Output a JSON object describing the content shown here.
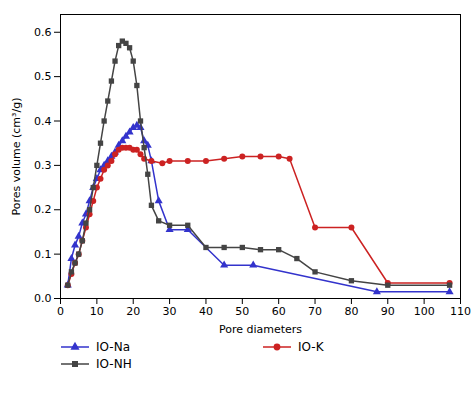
{
  "chart_data": {
    "type": "line",
    "xlabel": "Pore diameters",
    "ylabel": "Pores volume (cm³/g)",
    "xlim": [
      0,
      110
    ],
    "ylim": [
      0.0,
      0.64
    ],
    "xticks": [
      0,
      10,
      20,
      30,
      40,
      50,
      60,
      70,
      80,
      90,
      100,
      110
    ],
    "yticks": [
      {
        "value": 0.0,
        "label": "0.0"
      },
      0.1,
      0.2,
      0.3,
      0.4,
      0.5,
      0.6
    ],
    "grid": false,
    "legend": "bottom",
    "series": [
      {
        "name": "IO-Na",
        "color": "#3333cc",
        "marker": "triangle",
        "line_style": "solid",
        "x": [
          2,
          3,
          4,
          5,
          6,
          7,
          8,
          9,
          10,
          11,
          12,
          13,
          14,
          15,
          16,
          17,
          18,
          19,
          20,
          21,
          22,
          23,
          24,
          25,
          27,
          30,
          35,
          45,
          53,
          87,
          107
        ],
        "values": [
          0.03,
          0.09,
          0.12,
          0.14,
          0.17,
          0.19,
          0.22,
          0.25,
          0.27,
          0.29,
          0.3,
          0.31,
          0.32,
          0.33,
          0.345,
          0.355,
          0.365,
          0.375,
          0.385,
          0.39,
          0.385,
          0.355,
          0.345,
          0.31,
          0.22,
          0.155,
          0.155,
          0.075,
          0.075,
          0.015,
          0.015
        ]
      },
      {
        "name": "IO-K",
        "color": "#cc2222",
        "marker": "circle",
        "line_style": "solid",
        "x": [
          2,
          3,
          4,
          5,
          6,
          7,
          8,
          9,
          10,
          11,
          12,
          13,
          14,
          15,
          16,
          17,
          18,
          19,
          20,
          21,
          22,
          23,
          25,
          28,
          30,
          35,
          40,
          45,
          50,
          55,
          60,
          63,
          70,
          80,
          90,
          107
        ],
        "values": [
          0.03,
          0.055,
          0.08,
          0.1,
          0.13,
          0.16,
          0.19,
          0.22,
          0.25,
          0.27,
          0.29,
          0.3,
          0.31,
          0.325,
          0.335,
          0.34,
          0.34,
          0.34,
          0.335,
          0.335,
          0.325,
          0.315,
          0.31,
          0.305,
          0.31,
          0.31,
          0.31,
          0.315,
          0.32,
          0.32,
          0.32,
          0.315,
          0.16,
          0.16,
          0.035,
          0.035
        ]
      },
      {
        "name": "IO-NH",
        "color": "#444444",
        "marker": "square",
        "line_style": "solid",
        "x": [
          2,
          3,
          4,
          5,
          6,
          7,
          8,
          9,
          10,
          11,
          12,
          13,
          14,
          15,
          16,
          17,
          18,
          19,
          20,
          21,
          22,
          23,
          24,
          25,
          27,
          30,
          35,
          40,
          45,
          50,
          55,
          60,
          65,
          70,
          80,
          90,
          107
        ],
        "values": [
          0.03,
          0.06,
          0.08,
          0.1,
          0.13,
          0.17,
          0.2,
          0.25,
          0.3,
          0.35,
          0.4,
          0.445,
          0.49,
          0.535,
          0.57,
          0.58,
          0.575,
          0.565,
          0.535,
          0.48,
          0.4,
          0.34,
          0.28,
          0.21,
          0.175,
          0.165,
          0.165,
          0.115,
          0.115,
          0.115,
          0.11,
          0.11,
          0.09,
          0.06,
          0.04,
          0.03,
          0.03
        ]
      }
    ]
  }
}
